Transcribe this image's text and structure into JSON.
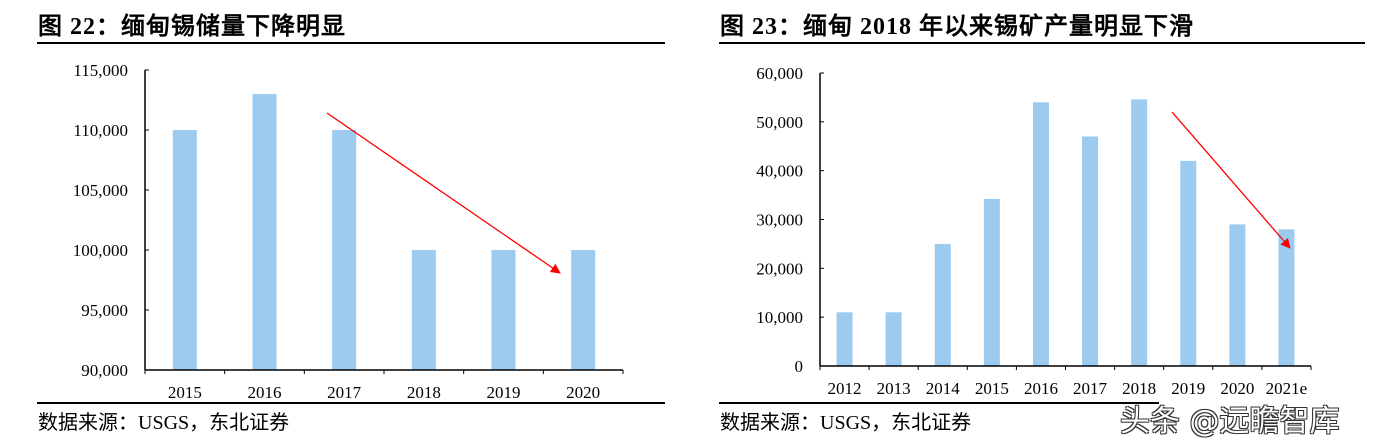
{
  "charts": [
    {
      "title": "图 22：缅甸锡储量下降明显",
      "source": "数据来源：USGS，东北证券"
    },
    {
      "title": "图 23：缅甸 2018 年以来锡矿产量明显下滑",
      "source": "数据来源：USGS，东北证券"
    }
  ],
  "watermark": "头条 @远瞻智库",
  "colors": {
    "bar": "#9DCBF0",
    "arrow": "#FF0000",
    "axis": "#000000"
  },
  "chart_data": [
    {
      "type": "bar",
      "title": "图 22：缅甸锡储量下降明显",
      "categories": [
        "2015",
        "2016",
        "2017",
        "2018",
        "2019",
        "2020"
      ],
      "values": [
        110000,
        113000,
        110000,
        100000,
        100000,
        100000
      ],
      "ylim": [
        90000,
        115000
      ],
      "yticks": [
        "90,000",
        "95,000",
        "100,000",
        "105,000",
        "110,000",
        "115,000"
      ],
      "ytick_values": [
        90000,
        95000,
        100000,
        105000,
        110000,
        115000
      ],
      "grid": false,
      "annotation": "red downward trend arrow"
    },
    {
      "type": "bar",
      "title": "图 23：缅甸 2018 年以来锡矿产量明显下滑",
      "categories": [
        "2012",
        "2013",
        "2014",
        "2015",
        "2016",
        "2017",
        "2018",
        "2019",
        "2020",
        "2021e"
      ],
      "values": [
        11000,
        11000,
        25000,
        34200,
        54000,
        47000,
        54600,
        42000,
        29000,
        28000
      ],
      "ylim": [
        0,
        60000
      ],
      "yticks": [
        "0",
        "10,000",
        "20,000",
        "30,000",
        "40,000",
        "50,000",
        "60,000"
      ],
      "ytick_values": [
        0,
        10000,
        20000,
        30000,
        40000,
        50000,
        60000
      ],
      "grid": false,
      "annotation": "red downward trend arrow"
    }
  ]
}
